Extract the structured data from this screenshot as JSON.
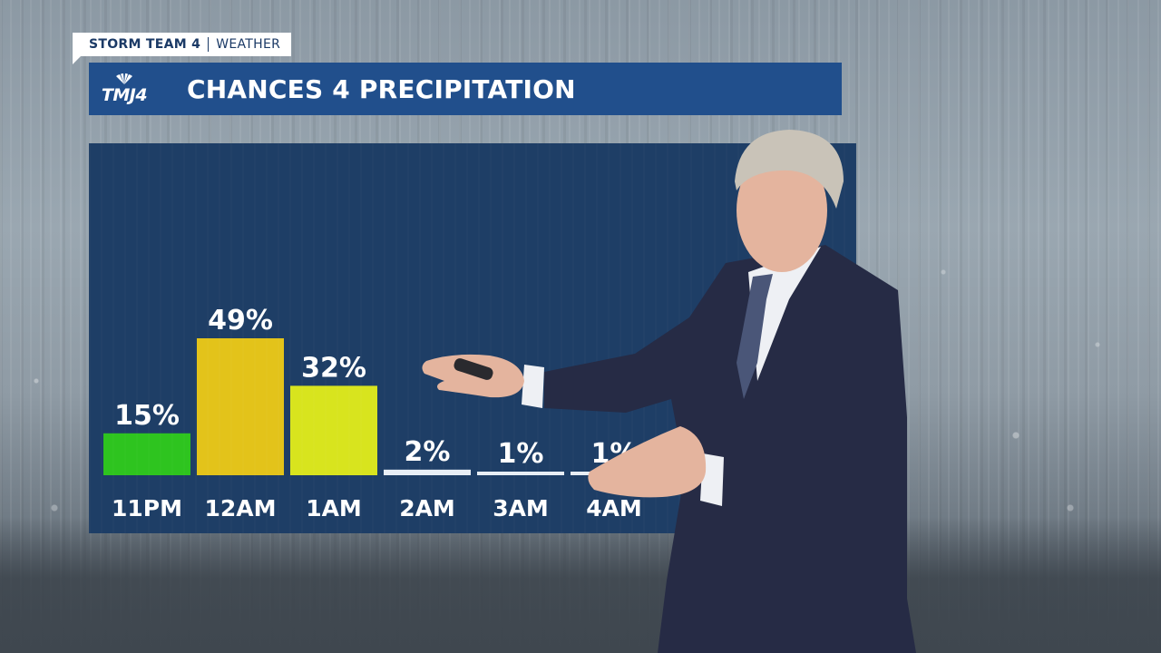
{
  "header": {
    "brand": "STORM TEAM 4",
    "section": "WEATHER"
  },
  "logo": {
    "text": "TMJ4",
    "icon": "peacock-icon"
  },
  "title": "CHANCES 4 PRECIPITATION",
  "colors": {
    "title_bar": "#214f8c",
    "panel": "#1e3e66",
    "low": "#2ec41f",
    "high": "#e3c31a",
    "mid": "#d8e41e",
    "trace": "#e8eef5"
  },
  "chart_data": {
    "type": "bar",
    "title": "CHANCES 4 PRECIPITATION",
    "categories": [
      "11PM",
      "12AM",
      "1AM",
      "2AM",
      "3AM",
      "4AM"
    ],
    "values": [
      15,
      49,
      32,
      2,
      1,
      1
    ],
    "value_labels": [
      "15%",
      "49%",
      "32%",
      "2%",
      "1%",
      "1%"
    ],
    "bar_colors": [
      "#2ec41f",
      "#e3c31a",
      "#d8e41e",
      "#e8eef5",
      "#e8eef5",
      "#e8eef5"
    ],
    "ylim": [
      0,
      49
    ],
    "grid": false,
    "legend": "none"
  }
}
